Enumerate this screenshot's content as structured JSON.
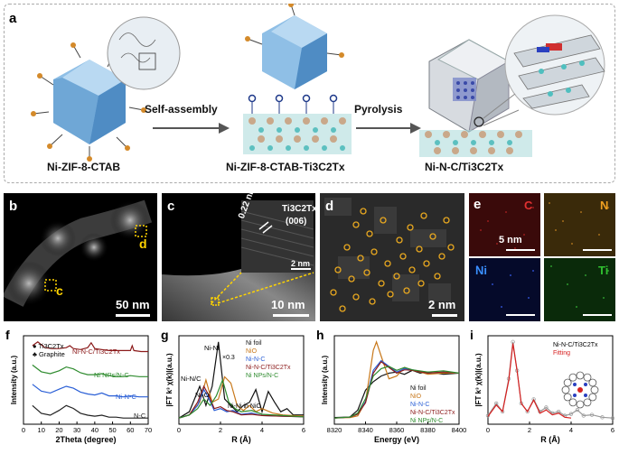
{
  "panel_a": {
    "label": "a",
    "step1": "Ni-ZIF-8-CTAB",
    "step2": "Ni-ZIF-8-CTAB-Ti3C2Tx",
    "step3": "Ni-N-C/Ti3C2Tx",
    "arrow1": "Self-assembly",
    "arrow2": "Pyrolysis"
  },
  "panel_b": {
    "label": "b",
    "marker_c": "c",
    "marker_d": "d",
    "scale": "50 nm"
  },
  "panel_c": {
    "label": "c",
    "inset_title": "Ti3C2Tx",
    "inset_plane": "(006)",
    "lattice": "0.22 nm",
    "inset_scale": "2 nm",
    "scale": "10 nm"
  },
  "panel_d": {
    "label": "d",
    "scale": "2 nm"
  },
  "panel_e": {
    "label": "e",
    "el_c": "C",
    "el_n": "N",
    "el_ni": "Ni",
    "el_ti": "Ti",
    "scale": "5 nm"
  },
  "colors": {
    "ti3c2tx": "#8b1a1a",
    "ni_nps": "#2e8b2e",
    "ni_n_c": "#2a5fd6",
    "n_c": "#222222",
    "ni_foil": "#111111",
    "nio": "#c8781a",
    "fit": "#d62020",
    "exp": "#999999"
  },
  "chart_data": [
    {
      "panel": "f",
      "type": "line",
      "xlabel": "2Theta (degree)",
      "ylabel": "Intensity (a.u.)",
      "xlim": [
        0,
        70
      ],
      "xticks": [
        "0",
        "10",
        "20",
        "30",
        "40",
        "50",
        "60",
        "70"
      ],
      "legend": [
        "Ti3C2Tx",
        "Graphite"
      ],
      "series": [
        {
          "name": "Ni-N-C/Ti3C2Tx",
          "x": [
            5,
            8,
            12,
            16,
            20,
            24,
            26,
            28,
            32,
            36,
            38,
            40,
            44,
            48,
            52,
            56,
            60,
            61,
            62,
            66,
            70
          ],
          "y": [
            0.82,
            0.86,
            0.8,
            0.79,
            0.79,
            0.8,
            0.82,
            0.79,
            0.78,
            0.8,
            0.85,
            0.79,
            0.78,
            0.77,
            0.77,
            0.77,
            0.77,
            0.82,
            0.77,
            0.76,
            0.76
          ]
        },
        {
          "name": "Ni NPs/N-C",
          "x": [
            5,
            10,
            15,
            20,
            24,
            28,
            32,
            36,
            40,
            44,
            48,
            52,
            56,
            60,
            65,
            70
          ],
          "y": [
            0.62,
            0.55,
            0.53,
            0.56,
            0.6,
            0.58,
            0.54,
            0.52,
            0.52,
            0.53,
            0.51,
            0.5,
            0.5,
            0.51,
            0.5,
            0.5
          ]
        },
        {
          "name": "Ni-N-C",
          "x": [
            5,
            10,
            15,
            20,
            24,
            28,
            32,
            36,
            40,
            44,
            48,
            52,
            56,
            60,
            65,
            70
          ],
          "y": [
            0.42,
            0.35,
            0.33,
            0.37,
            0.4,
            0.38,
            0.34,
            0.32,
            0.31,
            0.33,
            0.3,
            0.3,
            0.29,
            0.3,
            0.29,
            0.29
          ]
        },
        {
          "name": "N-C",
          "x": [
            5,
            10,
            15,
            20,
            24,
            28,
            32,
            36,
            40,
            44,
            48,
            52,
            56,
            60,
            65,
            70
          ],
          "y": [
            0.2,
            0.12,
            0.1,
            0.15,
            0.2,
            0.17,
            0.12,
            0.1,
            0.09,
            0.1,
            0.08,
            0.08,
            0.07,
            0.07,
            0.07,
            0.07
          ]
        }
      ]
    },
    {
      "panel": "g",
      "type": "line",
      "xlabel": "R (Å)",
      "ylabel": "|FT k³ χ(k)|(a.u.)",
      "xlim": [
        0,
        6
      ],
      "xticks": [
        "0",
        "2",
        "4",
        "6"
      ],
      "annotations": [
        "Ni-Ni",
        "×0.3",
        "Ni-N/C",
        "Ni-O",
        "Ni-Ni in NiO"
      ],
      "series": [
        {
          "name": "Ni foil",
          "x": [
            0,
            0.5,
            1,
            1.3,
            1.6,
            1.9,
            2.2,
            2.5,
            2.8,
            3.1,
            3.4,
            3.7,
            4,
            4.3,
            4.6,
            4.9,
            5.2,
            5.5,
            6
          ],
          "y": [
            0,
            0.1,
            0.5,
            0.2,
            0.5,
            1.2,
            0.3,
            0.2,
            0.1,
            0.2,
            0.25,
            0.45,
            0.1,
            0.42,
            0.25,
            0.1,
            0.15,
            0.05,
            0.05
          ]
        },
        {
          "name": "NiO",
          "x": [
            0,
            0.5,
            1,
            1.3,
            1.6,
            1.9,
            2.2,
            2.5,
            2.8,
            3.1,
            3.4,
            3.7,
            4,
            4.5,
            5,
            6
          ],
          "y": [
            0,
            0.05,
            0.25,
            0.6,
            0.25,
            0.3,
            0.65,
            0.55,
            0.2,
            0.12,
            0.2,
            0.1,
            0.15,
            0.08,
            0.05,
            0.03
          ]
        },
        {
          "name": "Ni-N-C",
          "x": [
            0,
            0.5,
            0.9,
            1.2,
            1.45,
            1.7,
            2,
            2.3,
            2.6,
            3,
            3.5,
            4,
            5,
            6
          ],
          "y": [
            0,
            0.05,
            0.2,
            0.45,
            0.3,
            0.12,
            0.15,
            0.1,
            0.12,
            0.06,
            0.08,
            0.04,
            0.03,
            0.02
          ]
        },
        {
          "name": "Ni-N-C/Ti3C2Tx",
          "x": [
            0,
            0.5,
            0.9,
            1.2,
            1.45,
            1.7,
            2,
            2.3,
            2.6,
            3,
            3.5,
            4,
            5,
            6
          ],
          "y": [
            0,
            0.05,
            0.25,
            0.5,
            0.35,
            0.15,
            0.18,
            0.12,
            0.1,
            0.05,
            0.06,
            0.04,
            0.03,
            0.02
          ]
        },
        {
          "name": "Ni NPs/N-C",
          "x": [
            0,
            0.5,
            0.9,
            1.2,
            1.5,
            1.8,
            2.1,
            2.4,
            2.7,
            3,
            3.5,
            4,
            5,
            6
          ],
          "y": [
            0,
            0.05,
            0.15,
            0.3,
            0.2,
            0.35,
            0.6,
            0.25,
            0.15,
            0.1,
            0.12,
            0.06,
            0.04,
            0.02
          ]
        }
      ]
    },
    {
      "panel": "h",
      "type": "line",
      "xlabel": "Energy (eV)",
      "ylabel": "Intensity (a.u.)",
      "xlim": [
        8320,
        8400
      ],
      "xticks": [
        "8320",
        "8340",
        "8360",
        "8380",
        "8400"
      ],
      "series": [
        {
          "name": "Ni foil",
          "x": [
            8320,
            8330,
            8335,
            8340,
            8345,
            8350,
            8355,
            8360,
            8365,
            8370,
            8375,
            8380,
            8390,
            8400
          ],
          "y": [
            0.02,
            0.03,
            0.15,
            0.5,
            0.65,
            0.75,
            0.8,
            0.82,
            0.78,
            0.85,
            0.8,
            0.82,
            0.78,
            0.8
          ]
        },
        {
          "name": "NiO",
          "x": [
            8320,
            8330,
            8335,
            8340,
            8345,
            8347,
            8350,
            8355,
            8360,
            8365,
            8370,
            8375,
            8380,
            8390,
            8400
          ],
          "y": [
            0.01,
            0.02,
            0.05,
            0.3,
            1.2,
            1.35,
            1.1,
            0.7,
            0.75,
            0.9,
            0.85,
            0.82,
            0.78,
            0.8,
            0.8
          ]
        },
        {
          "name": "Ni-N-C",
          "x": [
            8320,
            8330,
            8335,
            8340,
            8345,
            8350,
            8355,
            8360,
            8365,
            8370,
            8380,
            8390,
            8400
          ],
          "y": [
            0.01,
            0.03,
            0.08,
            0.3,
            0.85,
            1.02,
            0.92,
            0.82,
            0.88,
            0.86,
            0.8,
            0.82,
            0.8
          ]
        },
        {
          "name": "Ni-N-C/Ti3C2Tx",
          "x": [
            8320,
            8330,
            8335,
            8340,
            8345,
            8350,
            8355,
            8360,
            8365,
            8370,
            8380,
            8390,
            8400
          ],
          "y": [
            0.01,
            0.03,
            0.08,
            0.28,
            0.8,
            1.0,
            0.9,
            0.8,
            0.86,
            0.85,
            0.8,
            0.82,
            0.8
          ]
        },
        {
          "name": "Ni NPs/N-C",
          "x": [
            8320,
            8330,
            8335,
            8340,
            8345,
            8350,
            8355,
            8360,
            8365,
            8370,
            8380,
            8390,
            8400
          ],
          "y": [
            0.01,
            0.03,
            0.1,
            0.35,
            0.75,
            0.88,
            0.92,
            0.85,
            0.9,
            0.86,
            0.82,
            0.84,
            0.8
          ]
        }
      ]
    },
    {
      "panel": "i",
      "type": "line",
      "xlabel": "R (Å)",
      "ylabel": "|FT k³ χ(k)|(a.u.)",
      "xlim": [
        0,
        6
      ],
      "xticks": [
        "0",
        "2",
        "4",
        "6"
      ],
      "series": [
        {
          "name": "Ni-N-C/Ti3C2Tx",
          "x": [
            0,
            0.4,
            0.7,
            1,
            1.2,
            1.4,
            1.6,
            1.9,
            2.2,
            2.5,
            2.8,
            3.1,
            3.4,
            3.7,
            4,
            4.3,
            4.6,
            5,
            5.5,
            6
          ],
          "y": [
            0.05,
            0.2,
            0.1,
            0.5,
            0.95,
            0.6,
            0.2,
            0.1,
            0.25,
            0.1,
            0.15,
            0.08,
            0.1,
            0.05,
            0.07,
            0.12,
            0.05,
            0.06,
            0.03,
            0.02
          ]
        },
        {
          "name": "Fitting",
          "x": [
            0,
            0.4,
            0.7,
            1,
            1.2,
            1.4,
            1.6,
            1.9,
            2.2,
            2.5,
            2.8,
            3.1,
            3.4,
            3.7,
            4
          ],
          "y": [
            0.04,
            0.18,
            0.1,
            0.48,
            0.93,
            0.6,
            0.2,
            0.1,
            0.24,
            0.08,
            0.12,
            0.06,
            0.08,
            0.03,
            0.02
          ]
        }
      ]
    }
  ]
}
